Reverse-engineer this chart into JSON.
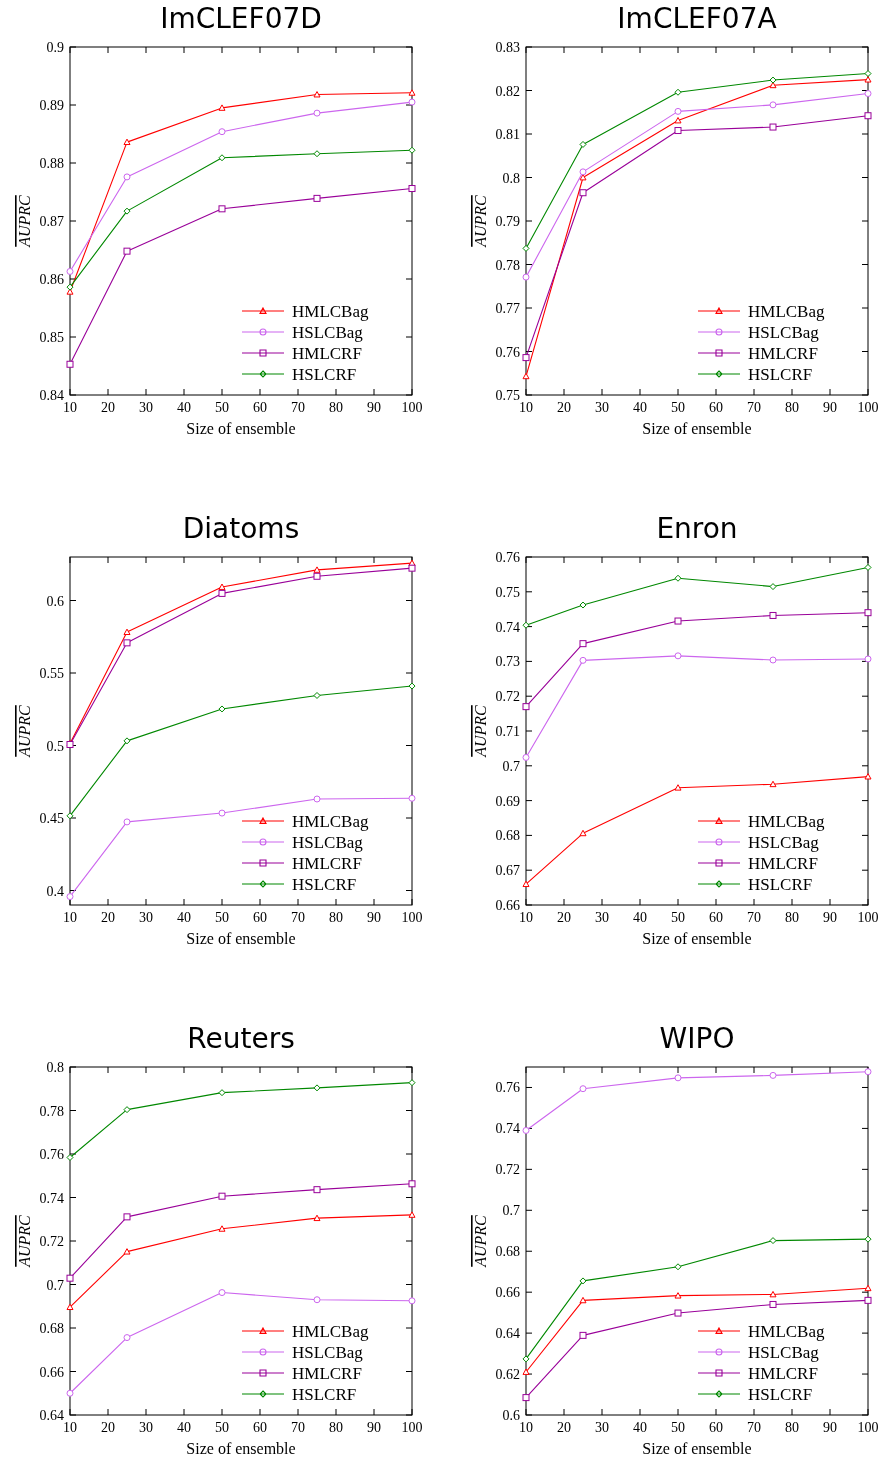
{
  "chart_data": [
    {
      "type": "line",
      "title": "ImCLEF07D",
      "xlabel": "Size of ensemble",
      "ylabel": "AUPRC",
      "x": [
        10,
        25,
        50,
        75,
        100
      ],
      "xlim": [
        10,
        100
      ],
      "xticks": [
        10,
        20,
        30,
        40,
        50,
        60,
        70,
        80,
        90,
        100
      ],
      "ylim": [
        0.84,
        0.9
      ],
      "yticks": [
        0.84,
        0.85,
        0.86,
        0.87,
        0.88,
        0.89,
        0.9
      ],
      "grid": false,
      "legend": "bottom right",
      "series": [
        {
          "name": "HMLCBag",
          "color": "#ff0000",
          "marker": "triangle",
          "values": [
            0.8578,
            0.8836,
            0.8895,
            0.8918,
            0.8921
          ]
        },
        {
          "name": "HSLCBag",
          "color": "#cc66ee",
          "marker": "circle",
          "values": [
            0.8613,
            0.8776,
            0.8854,
            0.8886,
            0.8905
          ]
        },
        {
          "name": "HMLCRF",
          "color": "#990099",
          "marker": "square",
          "values": [
            0.8453,
            0.8648,
            0.8721,
            0.8739,
            0.8756
          ]
        },
        {
          "name": "HSLCRF",
          "color": "#008800",
          "marker": "diamond",
          "values": [
            0.8586,
            0.8717,
            0.8809,
            0.8816,
            0.8822
          ]
        }
      ]
    },
    {
      "type": "line",
      "title": "ImCLEF07A",
      "xlabel": "Size of ensemble",
      "ylabel": "AUPRC",
      "x": [
        10,
        25,
        50,
        75,
        100
      ],
      "xlim": [
        10,
        100
      ],
      "xticks": [
        10,
        20,
        30,
        40,
        50,
        60,
        70,
        80,
        90,
        100
      ],
      "ylim": [
        0.75,
        0.83
      ],
      "yticks": [
        0.75,
        0.76,
        0.77,
        0.78,
        0.79,
        0.8,
        0.81,
        0.82,
        0.83
      ],
      "grid": false,
      "legend": "bottom right",
      "series": [
        {
          "name": "HMLCBag",
          "color": "#ff0000",
          "marker": "triangle",
          "values": [
            0.7543,
            0.8,
            0.8131,
            0.8212,
            0.8225
          ]
        },
        {
          "name": "HSLCBag",
          "color": "#cc66ee",
          "marker": "circle",
          "values": [
            0.7771,
            0.8013,
            0.8152,
            0.8167,
            0.8193
          ]
        },
        {
          "name": "HMLCRF",
          "color": "#990099",
          "marker": "square",
          "values": [
            0.7586,
            0.7965,
            0.8108,
            0.8116,
            0.8142
          ]
        },
        {
          "name": "HSLCRF",
          "color": "#008800",
          "marker": "diamond",
          "values": [
            0.7837,
            0.8076,
            0.8196,
            0.8224,
            0.8239
          ]
        }
      ]
    },
    {
      "type": "line",
      "title": "Diatoms",
      "xlabel": "Size of ensemble",
      "ylabel": "AUPRC",
      "x": [
        10,
        25,
        50,
        75,
        100
      ],
      "xlim": [
        10,
        100
      ],
      "xticks": [
        10,
        20,
        30,
        40,
        50,
        60,
        70,
        80,
        90,
        100
      ],
      "ylim": [
        0.39,
        0.63
      ],
      "yticks": [
        0.4,
        0.45,
        0.5,
        0.55,
        0.6
      ],
      "grid": false,
      "legend": "bottom right",
      "series": [
        {
          "name": "HMLCBag",
          "color": "#ff0000",
          "marker": "triangle",
          "values": [
            0.5014,
            0.5782,
            0.6093,
            0.6211,
            0.6258
          ]
        },
        {
          "name": "HSLCBag",
          "color": "#cc66ee",
          "marker": "circle",
          "values": [
            0.3958,
            0.4473,
            0.4534,
            0.4631,
            0.4636
          ]
        },
        {
          "name": "HMLCRF",
          "color": "#990099",
          "marker": "square",
          "values": [
            0.5007,
            0.5708,
            0.6049,
            0.6167,
            0.6223
          ]
        },
        {
          "name": "HSLCRF",
          "color": "#008800",
          "marker": "diamond",
          "values": [
            0.4515,
            0.5032,
            0.5252,
            0.5345,
            0.541
          ]
        }
      ]
    },
    {
      "type": "line",
      "title": "Enron",
      "xlabel": "Size of ensemble",
      "ylabel": "AUPRC",
      "x": [
        10,
        25,
        50,
        75,
        100
      ],
      "xlim": [
        10,
        100
      ],
      "xticks": [
        10,
        20,
        30,
        40,
        50,
        60,
        70,
        80,
        90,
        100
      ],
      "ylim": [
        0.66,
        0.76
      ],
      "yticks": [
        0.66,
        0.67,
        0.68,
        0.69,
        0.7,
        0.71,
        0.72,
        0.73,
        0.74,
        0.75,
        0.76
      ],
      "grid": false,
      "legend": "bottom right",
      "series": [
        {
          "name": "HMLCBag",
          "color": "#ff0000",
          "marker": "triangle",
          "values": [
            0.666,
            0.6806,
            0.6937,
            0.6947,
            0.6969
          ]
        },
        {
          "name": "HSLCBag",
          "color": "#cc66ee",
          "marker": "circle",
          "values": [
            0.7024,
            0.7303,
            0.7316,
            0.7304,
            0.7307
          ]
        },
        {
          "name": "HMLCRF",
          "color": "#990099",
          "marker": "square",
          "values": [
            0.717,
            0.7351,
            0.7416,
            0.7432,
            0.744
          ]
        },
        {
          "name": "HSLCRF",
          "color": "#008800",
          "marker": "diamond",
          "values": [
            0.7404,
            0.7462,
            0.7539,
            0.7515,
            0.757
          ]
        }
      ]
    },
    {
      "type": "line",
      "title": "Reuters",
      "xlabel": "Size of ensemble",
      "ylabel": "AUPRC",
      "x": [
        10,
        25,
        50,
        75,
        100
      ],
      "xlim": [
        10,
        100
      ],
      "xticks": [
        10,
        20,
        30,
        40,
        50,
        60,
        70,
        80,
        90,
        100
      ],
      "ylim": [
        0.64,
        0.8
      ],
      "yticks": [
        0.64,
        0.66,
        0.68,
        0.7,
        0.72,
        0.74,
        0.76,
        0.78,
        0.8
      ],
      "grid": false,
      "legend": "bottom right",
      "series": [
        {
          "name": "HMLCBag",
          "color": "#ff0000",
          "marker": "triangle",
          "values": [
            0.6896,
            0.7151,
            0.7256,
            0.7305,
            0.732
          ]
        },
        {
          "name": "HSLCBag",
          "color": "#cc66ee",
          "marker": "circle",
          "values": [
            0.65,
            0.6756,
            0.6963,
            0.693,
            0.6925
          ]
        },
        {
          "name": "HMLCRF",
          "color": "#990099",
          "marker": "square",
          "values": [
            0.7029,
            0.7311,
            0.7406,
            0.7436,
            0.7463
          ]
        },
        {
          "name": "HSLCRF",
          "color": "#008800",
          "marker": "diamond",
          "values": [
            0.7584,
            0.7804,
            0.7882,
            0.7904,
            0.7928
          ]
        }
      ]
    },
    {
      "type": "line",
      "title": "WIPO",
      "xlabel": "Size of ensemble",
      "ylabel": "AUPRC",
      "x": [
        10,
        25,
        50,
        75,
        100
      ],
      "xlim": [
        10,
        100
      ],
      "xticks": [
        10,
        20,
        30,
        40,
        50,
        60,
        70,
        80,
        90,
        100
      ],
      "ylim": [
        0.6,
        0.77
      ],
      "yticks": [
        0.6,
        0.62,
        0.64,
        0.66,
        0.68,
        0.7,
        0.72,
        0.74,
        0.76
      ],
      "grid": false,
      "legend": "bottom right",
      "series": [
        {
          "name": "HMLCBag",
          "color": "#ff0000",
          "marker": "triangle",
          "values": [
            0.621,
            0.656,
            0.6583,
            0.6589,
            0.6619
          ]
        },
        {
          "name": "HSLCBag",
          "color": "#cc66ee",
          "marker": "circle",
          "values": [
            0.739,
            0.7594,
            0.7647,
            0.7659,
            0.7677
          ]
        },
        {
          "name": "HMLCRF",
          "color": "#990099",
          "marker": "square",
          "values": [
            0.6085,
            0.6389,
            0.6498,
            0.654,
            0.656
          ]
        },
        {
          "name": "HSLCRF",
          "color": "#008800",
          "marker": "diamond",
          "values": [
            0.6274,
            0.6655,
            0.6724,
            0.6852,
            0.6859
          ]
        }
      ]
    }
  ]
}
